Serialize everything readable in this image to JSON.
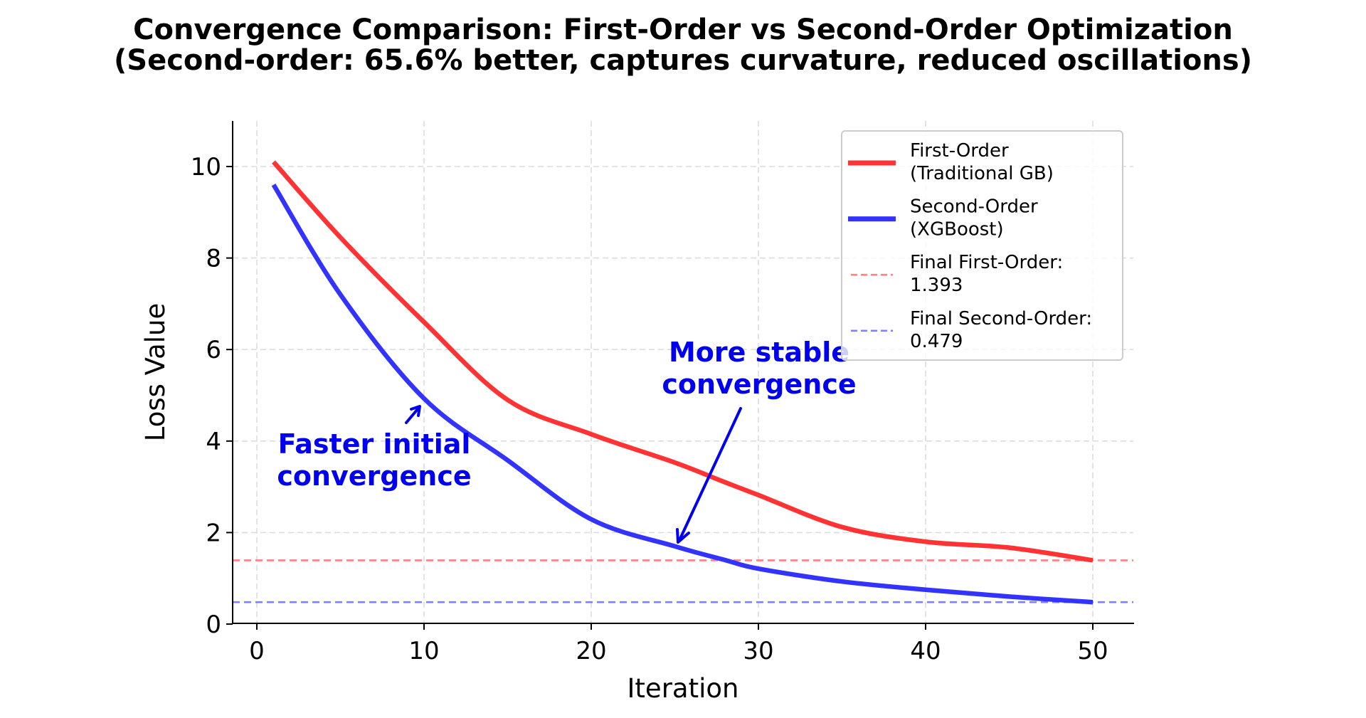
{
  "title": {
    "line1": "Convergence Comparison: First-Order vs Second-Order Optimization",
    "line2": "(Second-order: 65.6% better, captures curvature, reduced oscillations)"
  },
  "axes": {
    "xlabel": "Iteration",
    "ylabel": "Loss Value",
    "xticks": [
      "0",
      "10",
      "20",
      "30",
      "40",
      "50"
    ],
    "yticks": [
      "0",
      "2",
      "4",
      "6",
      "8",
      "10"
    ]
  },
  "legend": {
    "items": [
      {
        "line1": "First-Order",
        "line2": "(Traditional GB)",
        "color": "#ff3333",
        "style": "solid"
      },
      {
        "line1": "Second-Order",
        "line2": "(XGBoost)",
        "color": "#3333ff",
        "style": "solid"
      },
      {
        "line1": "Final First-Order:",
        "line2": "1.393",
        "color": "#ff8080",
        "style": "dashed"
      },
      {
        "line1": "Final Second-Order:",
        "line2": "0.479",
        "color": "#8080ff",
        "style": "dashed"
      }
    ]
  },
  "annotations": {
    "faster": {
      "line1": "Faster initial",
      "line2": "convergence",
      "color": "#0000ee"
    },
    "stable": {
      "line1": "More stable",
      "line2": "convergence",
      "color": "#0000ee"
    }
  },
  "chart_data": {
    "type": "line",
    "title": "Convergence Comparison: First-Order vs Second-Order Optimization\n(Second-order: 65.6% better, captures curvature, reduced oscillations)",
    "xlabel": "Iteration",
    "ylabel": "Loss Value",
    "xlim": [
      -1.4,
      52.4
    ],
    "ylim": [
      0,
      11
    ],
    "grid": true,
    "legend_position": "upper right",
    "x": [
      1,
      5,
      10,
      15,
      20,
      25,
      28,
      30,
      35,
      40,
      45,
      50
    ],
    "series": [
      {
        "name": "First-Order (Traditional GB)",
        "color": "#ff3333",
        "values": [
          10.1,
          8.45,
          6.6,
          4.9,
          4.15,
          3.53,
          3.1,
          2.82,
          2.12,
          1.8,
          1.67,
          1.393
        ]
      },
      {
        "name": "Second-Order (XGBoost)",
        "color": "#3333ff",
        "values": [
          9.6,
          7.2,
          4.93,
          3.58,
          2.29,
          1.7,
          1.4,
          1.21,
          0.93,
          0.75,
          0.6,
          0.479
        ]
      }
    ],
    "hlines": [
      {
        "name": "Final First-Order: 1.393",
        "y": 1.393,
        "color": "#ff8080",
        "style": "dashed"
      },
      {
        "name": "Final Second-Order: 0.479",
        "y": 0.479,
        "color": "#8080ff",
        "style": "dashed"
      }
    ],
    "annotations": [
      {
        "text": "Faster initial\nconvergence",
        "xy": [
          10,
          4.8
        ],
        "xytext": [
          7,
          3.4
        ]
      },
      {
        "text": "More stable\nconvergence",
        "xy": [
          25,
          1.7
        ],
        "xytext": [
          30,
          5.1
        ]
      }
    ]
  }
}
